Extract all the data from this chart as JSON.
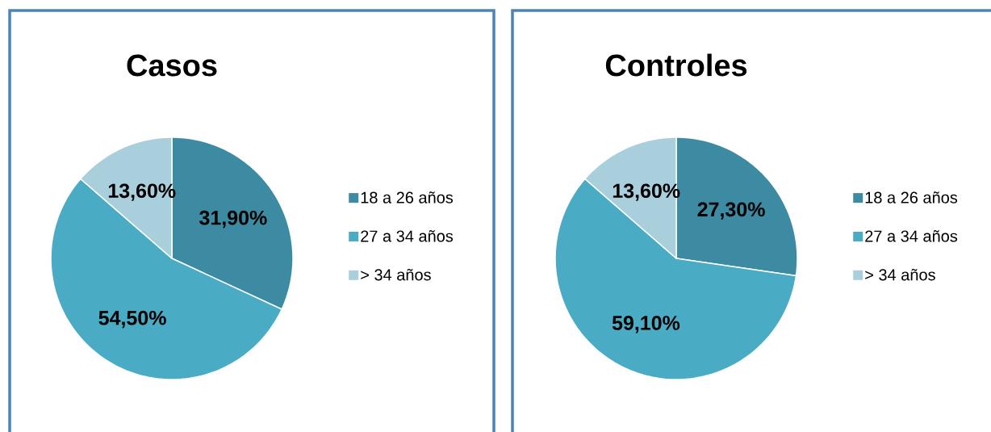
{
  "chart_data": [
    {
      "type": "pie",
      "title": "Casos",
      "categories": [
        "18 a 26 años",
        "27 a 34 años",
        "> 34 años"
      ],
      "values": [
        31.9,
        54.5,
        13.6
      ],
      "colors": [
        "#3d8ba3",
        "#4aabc5",
        "#a9cfdc"
      ],
      "value_labels": [
        "31,90%",
        "54,50%",
        "13,60%"
      ],
      "legend": "right"
    },
    {
      "type": "pie",
      "title": "Controles",
      "categories": [
        "18 a 26 años",
        "27 a 34 años",
        "> 34 años"
      ],
      "values": [
        27.3,
        59.1,
        13.6
      ],
      "colors": [
        "#3d8ba3",
        "#4aabc5",
        "#a9cfdc"
      ],
      "value_labels": [
        "27,30%",
        "59,10%",
        "13,60%"
      ],
      "legend": "right"
    }
  ]
}
